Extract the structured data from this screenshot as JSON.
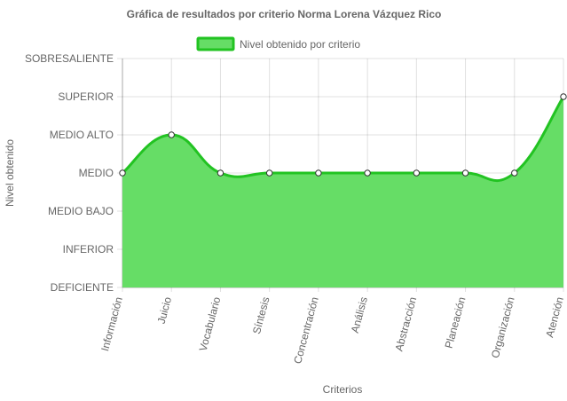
{
  "chart_data": {
    "type": "area",
    "title": "Gráfica de resultados por criterio Norma Lorena Vázquez Rico",
    "xlabel": "Criterios",
    "ylabel": "Nivel obtenido",
    "categories": [
      "Información",
      "Juicio",
      "Vocabulario",
      "Síntesis",
      "Concentración",
      "Análisis",
      "Abstracción",
      "Planeación",
      "Organización",
      "Atención"
    ],
    "y_levels": [
      "DEFICIENTE",
      "INFERIOR",
      "MEDIO BAJO",
      "MEDIO",
      "MEDIO ALTO",
      "SUPERIOR",
      "SOBRESALIENTE"
    ],
    "ylim": [
      0,
      6
    ],
    "grid": true,
    "legend_position": "top",
    "series": [
      {
        "name": "Nivel obtenido por criterio",
        "values": [
          3,
          4,
          3,
          3,
          3,
          3,
          3,
          3,
          3,
          5
        ],
        "line_color": "#22c322",
        "fill_color": "#66dd66"
      }
    ]
  }
}
